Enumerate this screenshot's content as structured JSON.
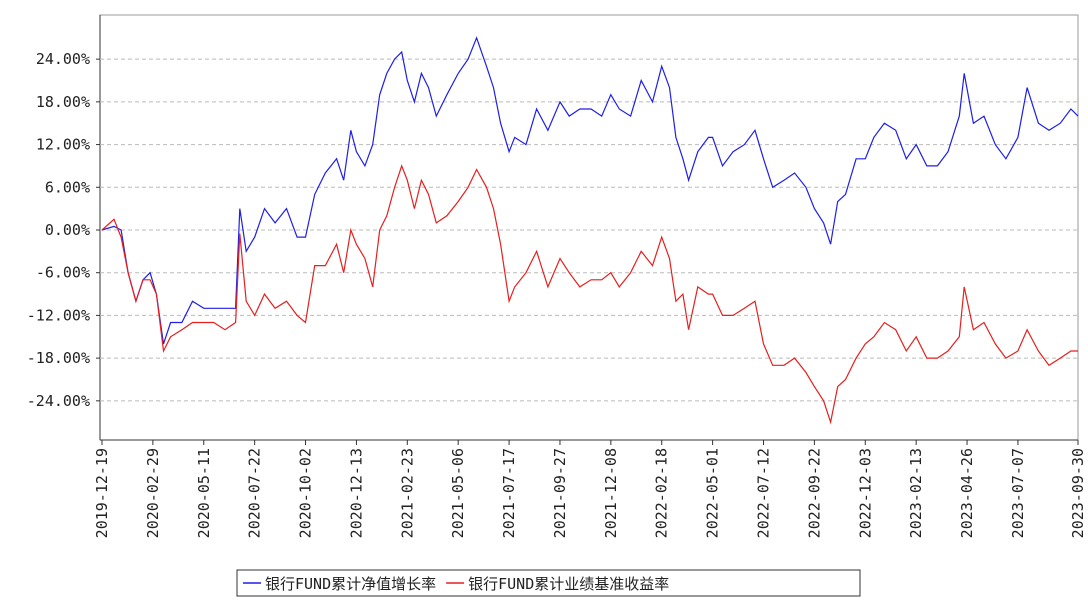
{
  "chart_data": {
    "type": "line",
    "x": [
      "2019-12-19",
      "2020-01-05",
      "2020-01-15",
      "2020-01-25",
      "2020-02-05",
      "2020-02-15",
      "2020-02-25",
      "2020-03-05",
      "2020-03-15",
      "2020-03-25",
      "2020-04-10",
      "2020-04-25",
      "2020-05-11",
      "2020-05-25",
      "2020-06-10",
      "2020-06-25",
      "2020-07-01",
      "2020-07-10",
      "2020-07-22",
      "2020-08-05",
      "2020-08-20",
      "2020-09-05",
      "2020-09-20",
      "2020-10-02",
      "2020-10-15",
      "2020-10-30",
      "2020-11-15",
      "2020-11-25",
      "2020-12-05",
      "2020-12-13",
      "2020-12-25",
      "2021-01-05",
      "2021-01-15",
      "2021-01-25",
      "2021-02-05",
      "2021-02-15",
      "2021-02-23",
      "2021-03-05",
      "2021-03-15",
      "2021-03-25",
      "2021-04-05",
      "2021-04-20",
      "2021-05-06",
      "2021-05-20",
      "2021-06-01",
      "2021-06-15",
      "2021-06-25",
      "2021-07-05",
      "2021-07-17",
      "2021-07-25",
      "2021-08-10",
      "2021-08-25",
      "2021-09-10",
      "2021-09-27",
      "2021-10-10",
      "2021-10-25",
      "2021-11-10",
      "2021-11-25",
      "2021-12-08",
      "2021-12-20",
      "2022-01-05",
      "2022-01-20",
      "2022-02-05",
      "2022-02-18",
      "2022-03-01",
      "2022-03-10",
      "2022-03-20",
      "2022-03-28",
      "2022-04-10",
      "2022-04-25",
      "2022-05-01",
      "2022-05-15",
      "2022-05-30",
      "2022-06-15",
      "2022-06-30",
      "2022-07-12",
      "2022-07-25",
      "2022-08-10",
      "2022-08-25",
      "2022-09-10",
      "2022-09-22",
      "2022-10-05",
      "2022-10-15",
      "2022-10-25",
      "2022-11-05",
      "2022-11-20",
      "2022-12-03",
      "2022-12-15",
      "2022-12-30",
      "2023-01-15",
      "2023-01-30",
      "2023-02-13",
      "2023-02-28",
      "2023-03-15",
      "2023-03-30",
      "2023-04-15",
      "2023-04-22",
      "2023-05-05",
      "2023-05-20",
      "2023-06-05",
      "2023-06-20",
      "2023-07-07",
      "2023-07-20",
      "2023-08-05",
      "2023-08-20",
      "2023-09-05",
      "2023-09-20",
      "2023-09-30"
    ],
    "series": [
      {
        "name": "银行FUND累计净值增长率",
        "color": "#1f1fe6",
        "values": [
          0,
          0.5,
          0,
          -6,
          -10,
          -7,
          -6,
          -9,
          -16,
          -13,
          -13,
          -10,
          -11,
          -11,
          -11,
          -11,
          3,
          -3,
          -1,
          3,
          1,
          3,
          -1,
          -1,
          5,
          8,
          10,
          7,
          14,
          11,
          9,
          12,
          19,
          22,
          24,
          25,
          21,
          18,
          22,
          20,
          16,
          19,
          22,
          24,
          27,
          23,
          20,
          15,
          11,
          13,
          12,
          17,
          14,
          18,
          16,
          17,
          17,
          16,
          19,
          17,
          16,
          21,
          18,
          23,
          20,
          13,
          10,
          7,
          11,
          13,
          13,
          9,
          11,
          12,
          14,
          10,
          6,
          7,
          8,
          6,
          3,
          1,
          -2,
          4,
          5,
          10,
          10,
          13,
          15,
          14,
          10,
          12,
          9,
          9,
          11,
          16,
          22,
          15,
          16,
          12,
          10,
          13,
          20,
          15,
          14,
          15,
          17,
          16
        ]
      },
      {
        "name": "银行FUND累计业绩基准收益率",
        "color": "#e61f1f",
        "values": [
          0,
          1.5,
          -1,
          -6,
          -10,
          -7,
          -7,
          -9,
          -17,
          -15,
          -14,
          -13,
          -13,
          -13,
          -14,
          -13,
          -0.5,
          -10,
          -12,
          -9,
          -11,
          -10,
          -12,
          -13,
          -5,
          -5,
          -2,
          -6,
          0,
          -2,
          -4,
          -8,
          0,
          2,
          6,
          9,
          7,
          3,
          7,
          5,
          1,
          2,
          4,
          6,
          8.5,
          6,
          3,
          -2,
          -10,
          -8,
          -6,
          -3,
          -8,
          -4,
          -6,
          -8,
          -7,
          -7,
          -6,
          -8,
          -6,
          -3,
          -5,
          -1,
          -4,
          -10,
          -9,
          -14,
          -8,
          -9,
          -9,
          -12,
          -12,
          -11,
          -10,
          -16,
          -19,
          -19,
          -18,
          -20,
          -22,
          -24,
          -27,
          -22,
          -21,
          -18,
          -16,
          -15,
          -13,
          -14,
          -17,
          -15,
          -18,
          -18,
          -17,
          -15,
          -8,
          -14,
          -13,
          -16,
          -18,
          -17,
          -14,
          -17,
          -19,
          -18,
          -17,
          -17
        ]
      }
    ],
    "xlim": [
      "2019-12-19",
      "2023-09-30"
    ],
    "xticks": [
      "2019-12-19",
      "2020-02-29",
      "2020-05-11",
      "2020-07-22",
      "2020-10-02",
      "2020-12-13",
      "2021-02-23",
      "2021-05-06",
      "2021-07-17",
      "2021-09-27",
      "2021-12-08",
      "2022-02-18",
      "2022-05-01",
      "2022-07-12",
      "2022-09-22",
      "2022-12-03",
      "2023-02-13",
      "2023-04-26",
      "2023-07-07",
      "2023-09-30"
    ],
    "ylim": [
      -29.5,
      30.2
    ],
    "yticks": [
      {
        "value": -24,
        "label": "-24.00%"
      },
      {
        "value": -18,
        "label": "-18.00%"
      },
      {
        "value": -12,
        "label": "-12.00%"
      },
      {
        "value": -6,
        "label": "-6.00%"
      },
      {
        "value": 0,
        "label": "0.00%"
      },
      {
        "value": 6,
        "label": "6.00%"
      },
      {
        "value": 12,
        "label": "12.00%"
      },
      {
        "value": 18,
        "label": "18.00%"
      },
      {
        "value": 24,
        "label": "24.00%"
      }
    ],
    "grid": true
  }
}
